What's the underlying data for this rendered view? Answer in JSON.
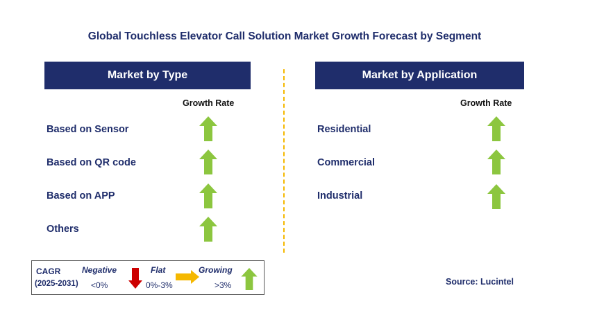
{
  "title": "Global Touchless Elevator Call Solution Market Growth Forecast by Segment",
  "left_panel": {
    "header": "Market by Type",
    "growth_rate_label": "Growth Rate",
    "items": [
      {
        "label": "Based on Sensor",
        "trend": "growing"
      },
      {
        "label": "Based on QR code",
        "trend": "growing"
      },
      {
        "label": "Based on APP",
        "trend": "growing"
      },
      {
        "label": "Others",
        "trend": "growing"
      }
    ]
  },
  "right_panel": {
    "header": "Market by Application",
    "growth_rate_label": "Growth Rate",
    "items": [
      {
        "label": "Residential",
        "trend": "growing"
      },
      {
        "label": "Commercial",
        "trend": "growing"
      },
      {
        "label": "Industrial",
        "trend": "growing"
      }
    ]
  },
  "legend": {
    "cagr_label": "CAGR",
    "period": "(2025-2031)",
    "negative_label": "Negative",
    "negative_range": "<0%",
    "flat_label": "Flat",
    "flat_range": "0%-3%",
    "growing_label": "Growing",
    "growing_range": ">3%"
  },
  "source": "Source: Lucintel",
  "colors": {
    "navy": "#1f2d6b",
    "up_arrow": "#8cc63f",
    "down_arrow": "#cc0000",
    "flat_arrow": "#f5b800",
    "divider": "#f5b800"
  }
}
